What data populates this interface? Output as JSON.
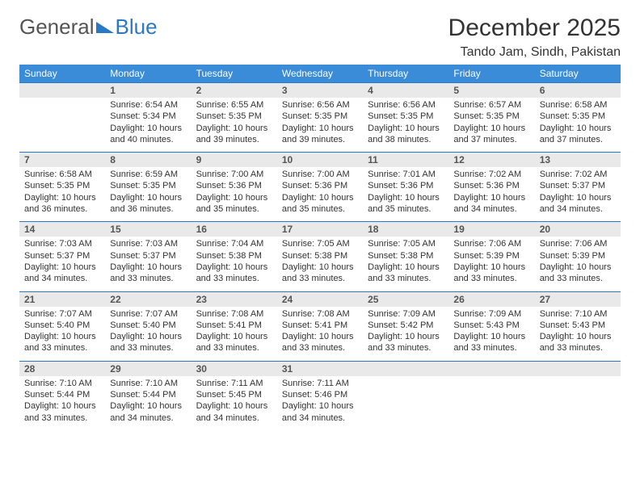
{
  "logo": {
    "part1": "General",
    "part2": "Blue"
  },
  "header": {
    "title": "December 2025",
    "location": "Tando Jam, Sindh, Pakistan"
  },
  "colors": {
    "header_bg": "#3a8bd8",
    "header_fg": "#ffffff",
    "daynum_bg": "#e9e9e9",
    "row_border": "#2b78c4",
    "logo_blue": "#2b78c4",
    "text": "#333333",
    "page_bg": "#ffffff"
  },
  "weekdays": [
    "Sunday",
    "Monday",
    "Tuesday",
    "Wednesday",
    "Thursday",
    "Friday",
    "Saturday"
  ],
  "grid": [
    [
      null,
      {
        "n": "1",
        "sr": "6:54 AM",
        "ss": "5:34 PM",
        "dl": "10 hours and 40 minutes."
      },
      {
        "n": "2",
        "sr": "6:55 AM",
        "ss": "5:35 PM",
        "dl": "10 hours and 39 minutes."
      },
      {
        "n": "3",
        "sr": "6:56 AM",
        "ss": "5:35 PM",
        "dl": "10 hours and 39 minutes."
      },
      {
        "n": "4",
        "sr": "6:56 AM",
        "ss": "5:35 PM",
        "dl": "10 hours and 38 minutes."
      },
      {
        "n": "5",
        "sr": "6:57 AM",
        "ss": "5:35 PM",
        "dl": "10 hours and 37 minutes."
      },
      {
        "n": "6",
        "sr": "6:58 AM",
        "ss": "5:35 PM",
        "dl": "10 hours and 37 minutes."
      }
    ],
    [
      {
        "n": "7",
        "sr": "6:58 AM",
        "ss": "5:35 PM",
        "dl": "10 hours and 36 minutes."
      },
      {
        "n": "8",
        "sr": "6:59 AM",
        "ss": "5:35 PM",
        "dl": "10 hours and 36 minutes."
      },
      {
        "n": "9",
        "sr": "7:00 AM",
        "ss": "5:36 PM",
        "dl": "10 hours and 35 minutes."
      },
      {
        "n": "10",
        "sr": "7:00 AM",
        "ss": "5:36 PM",
        "dl": "10 hours and 35 minutes."
      },
      {
        "n": "11",
        "sr": "7:01 AM",
        "ss": "5:36 PM",
        "dl": "10 hours and 35 minutes."
      },
      {
        "n": "12",
        "sr": "7:02 AM",
        "ss": "5:36 PM",
        "dl": "10 hours and 34 minutes."
      },
      {
        "n": "13",
        "sr": "7:02 AM",
        "ss": "5:37 PM",
        "dl": "10 hours and 34 minutes."
      }
    ],
    [
      {
        "n": "14",
        "sr": "7:03 AM",
        "ss": "5:37 PM",
        "dl": "10 hours and 34 minutes."
      },
      {
        "n": "15",
        "sr": "7:03 AM",
        "ss": "5:37 PM",
        "dl": "10 hours and 33 minutes."
      },
      {
        "n": "16",
        "sr": "7:04 AM",
        "ss": "5:38 PM",
        "dl": "10 hours and 33 minutes."
      },
      {
        "n": "17",
        "sr": "7:05 AM",
        "ss": "5:38 PM",
        "dl": "10 hours and 33 minutes."
      },
      {
        "n": "18",
        "sr": "7:05 AM",
        "ss": "5:38 PM",
        "dl": "10 hours and 33 minutes."
      },
      {
        "n": "19",
        "sr": "7:06 AM",
        "ss": "5:39 PM",
        "dl": "10 hours and 33 minutes."
      },
      {
        "n": "20",
        "sr": "7:06 AM",
        "ss": "5:39 PM",
        "dl": "10 hours and 33 minutes."
      }
    ],
    [
      {
        "n": "21",
        "sr": "7:07 AM",
        "ss": "5:40 PM",
        "dl": "10 hours and 33 minutes."
      },
      {
        "n": "22",
        "sr": "7:07 AM",
        "ss": "5:40 PM",
        "dl": "10 hours and 33 minutes."
      },
      {
        "n": "23",
        "sr": "7:08 AM",
        "ss": "5:41 PM",
        "dl": "10 hours and 33 minutes."
      },
      {
        "n": "24",
        "sr": "7:08 AM",
        "ss": "5:41 PM",
        "dl": "10 hours and 33 minutes."
      },
      {
        "n": "25",
        "sr": "7:09 AM",
        "ss": "5:42 PM",
        "dl": "10 hours and 33 minutes."
      },
      {
        "n": "26",
        "sr": "7:09 AM",
        "ss": "5:43 PM",
        "dl": "10 hours and 33 minutes."
      },
      {
        "n": "27",
        "sr": "7:10 AM",
        "ss": "5:43 PM",
        "dl": "10 hours and 33 minutes."
      }
    ],
    [
      {
        "n": "28",
        "sr": "7:10 AM",
        "ss": "5:44 PM",
        "dl": "10 hours and 33 minutes."
      },
      {
        "n": "29",
        "sr": "7:10 AM",
        "ss": "5:44 PM",
        "dl": "10 hours and 34 minutes."
      },
      {
        "n": "30",
        "sr": "7:11 AM",
        "ss": "5:45 PM",
        "dl": "10 hours and 34 minutes."
      },
      {
        "n": "31",
        "sr": "7:11 AM",
        "ss": "5:46 PM",
        "dl": "10 hours and 34 minutes."
      },
      null,
      null,
      null
    ]
  ],
  "labels": {
    "sunrise": "Sunrise:",
    "sunset": "Sunset:",
    "daylight": "Daylight:"
  }
}
